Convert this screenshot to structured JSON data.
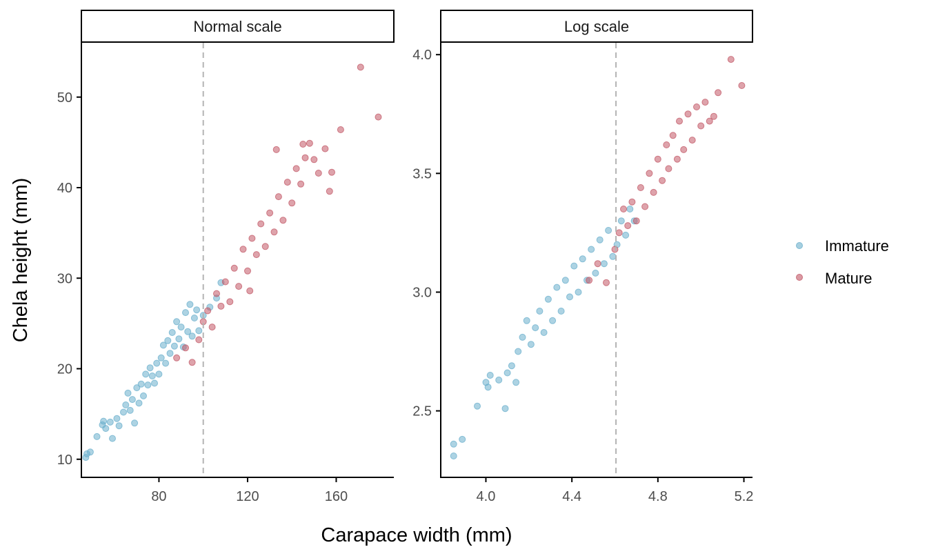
{
  "chart_data": [
    {
      "type": "scatter",
      "panel": "Normal scale",
      "xlabel": "Carapace width (mm)",
      "ylabel": "Chela height (mm)",
      "xlim": [
        45,
        186
      ],
      "ylim": [
        8,
        56
      ],
      "x_ticks": [
        80,
        120,
        160
      ],
      "y_ticks": [
        10,
        20,
        30,
        40,
        50
      ],
      "vline": 100,
      "grid": false,
      "legend": "right",
      "series": [
        {
          "name": "Immature",
          "color": "#6aafcc",
          "points": [
            [
              47,
              10.2
            ],
            [
              47.5,
              10.6
            ],
            [
              49,
              10.8
            ],
            [
              52,
              12.5
            ],
            [
              54.5,
              13.8
            ],
            [
              55,
              14.2
            ],
            [
              56,
              13.4
            ],
            [
              58,
              14.1
            ],
            [
              59,
              12.3
            ],
            [
              61,
              14.5
            ],
            [
              62,
              13.7
            ],
            [
              64,
              15.2
            ],
            [
              65,
              16.0
            ],
            [
              66,
              17.3
            ],
            [
              67,
              15.4
            ],
            [
              68,
              16.6
            ],
            [
              69,
              14.0
            ],
            [
              70,
              17.9
            ],
            [
              71,
              16.2
            ],
            [
              72,
              18.3
            ],
            [
              73,
              17.0
            ],
            [
              74,
              19.4
            ],
            [
              75,
              18.2
            ],
            [
              76,
              20.1
            ],
            [
              77,
              19.2
            ],
            [
              78,
              18.4
            ],
            [
              79,
              20.6
            ],
            [
              80,
              19.4
            ],
            [
              81,
              21.2
            ],
            [
              82,
              22.6
            ],
            [
              83,
              20.6
            ],
            [
              84,
              23.1
            ],
            [
              85,
              21.7
            ],
            [
              86,
              24.0
            ],
            [
              87,
              22.5
            ],
            [
              88,
              25.2
            ],
            [
              89,
              23.3
            ],
            [
              90,
              24.6
            ],
            [
              91,
              22.4
            ],
            [
              92,
              26.2
            ],
            [
              93,
              24.1
            ],
            [
              94,
              27.1
            ],
            [
              95,
              23.6
            ],
            [
              96,
              25.6
            ],
            [
              97,
              26.5
            ],
            [
              98,
              24.2
            ],
            [
              100,
              25.9
            ],
            [
              103,
              26.8
            ],
            [
              106,
              27.8
            ],
            [
              108,
              29.5
            ]
          ]
        },
        {
          "name": "Mature",
          "color": "#c25766",
          "points": [
            [
              88,
              21.2
            ],
            [
              92,
              22.3
            ],
            [
              95,
              20.7
            ],
            [
              98,
              23.2
            ],
            [
              100,
              25.2
            ],
            [
              102,
              26.4
            ],
            [
              104,
              24.6
            ],
            [
              106,
              28.3
            ],
            [
              108,
              26.9
            ],
            [
              110,
              29.6
            ],
            [
              112,
              27.4
            ],
            [
              114,
              31.1
            ],
            [
              116,
              29.1
            ],
            [
              118,
              33.2
            ],
            [
              120,
              30.8
            ],
            [
              121,
              28.6
            ],
            [
              122,
              34.4
            ],
            [
              124,
              32.6
            ],
            [
              126,
              36.0
            ],
            [
              128,
              33.5
            ],
            [
              130,
              37.2
            ],
            [
              132,
              35.1
            ],
            [
              133,
              44.2
            ],
            [
              134,
              39.0
            ],
            [
              136,
              36.4
            ],
            [
              138,
              40.6
            ],
            [
              140,
              38.3
            ],
            [
              142,
              42.1
            ],
            [
              144,
              40.4
            ],
            [
              145,
              44.8
            ],
            [
              146,
              43.3
            ],
            [
              148,
              44.9
            ],
            [
              150,
              43.1
            ],
            [
              152,
              41.6
            ],
            [
              155,
              44.3
            ],
            [
              157,
              39.6
            ],
            [
              158,
              41.7
            ],
            [
              162,
              46.4
            ],
            [
              171,
              53.3
            ],
            [
              179,
              47.8
            ]
          ]
        }
      ]
    },
    {
      "type": "scatter",
      "panel": "Log scale",
      "xlabel": "Carapace width (mm)",
      "ylabel": "Chela height (mm)",
      "xlim": [
        3.79,
        5.24
      ],
      "ylim": [
        2.22,
        4.05
      ],
      "x_ticks": [
        "4.0",
        "4.4",
        "4.8",
        "5.2"
      ],
      "y_ticks": [
        "2.5",
        "3.0",
        "3.5",
        "4.0"
      ],
      "vline": 4.605,
      "grid": false,
      "legend": "right",
      "series": [
        {
          "name": "Immature",
          "color": "#6aafcc",
          "points": [
            [
              3.85,
              2.31
            ],
            [
              3.85,
              2.36
            ],
            [
              3.89,
              2.38
            ],
            [
              3.96,
              2.52
            ],
            [
              4.0,
              2.62
            ],
            [
              4.01,
              2.6
            ],
            [
              4.02,
              2.65
            ],
            [
              4.06,
              2.63
            ],
            [
              4.09,
              2.51
            ],
            [
              4.1,
              2.66
            ],
            [
              4.12,
              2.69
            ],
            [
              4.14,
              2.62
            ],
            [
              4.15,
              2.75
            ],
            [
              4.17,
              2.81
            ],
            [
              4.19,
              2.88
            ],
            [
              4.21,
              2.78
            ],
            [
              4.23,
              2.85
            ],
            [
              4.25,
              2.92
            ],
            [
              4.27,
              2.83
            ],
            [
              4.29,
              2.97
            ],
            [
              4.31,
              2.88
            ],
            [
              4.33,
              3.02
            ],
            [
              4.35,
              2.92
            ],
            [
              4.37,
              3.05
            ],
            [
              4.39,
              2.98
            ],
            [
              4.41,
              3.11
            ],
            [
              4.43,
              3.0
            ],
            [
              4.45,
              3.14
            ],
            [
              4.47,
              3.05
            ],
            [
              4.49,
              3.18
            ],
            [
              4.51,
              3.08
            ],
            [
              4.53,
              3.22
            ],
            [
              4.55,
              3.12
            ],
            [
              4.57,
              3.26
            ],
            [
              4.59,
              3.15
            ],
            [
              4.61,
              3.2
            ],
            [
              4.63,
              3.3
            ],
            [
              4.65,
              3.24
            ],
            [
              4.67,
              3.35
            ],
            [
              4.69,
              3.3
            ]
          ]
        },
        {
          "name": "Mature",
          "color": "#c25766",
          "points": [
            [
              4.48,
              3.05
            ],
            [
              4.52,
              3.12
            ],
            [
              4.56,
              3.04
            ],
            [
              4.6,
              3.18
            ],
            [
              4.62,
              3.25
            ],
            [
              4.64,
              3.35
            ],
            [
              4.66,
              3.28
            ],
            [
              4.68,
              3.38
            ],
            [
              4.7,
              3.3
            ],
            [
              4.72,
              3.44
            ],
            [
              4.74,
              3.36
            ],
            [
              4.76,
              3.5
            ],
            [
              4.78,
              3.42
            ],
            [
              4.8,
              3.56
            ],
            [
              4.82,
              3.47
            ],
            [
              4.84,
              3.62
            ],
            [
              4.85,
              3.52
            ],
            [
              4.87,
              3.66
            ],
            [
              4.89,
              3.56
            ],
            [
              4.9,
              3.72
            ],
            [
              4.92,
              3.6
            ],
            [
              4.94,
              3.75
            ],
            [
              4.96,
              3.64
            ],
            [
              4.98,
              3.78
            ],
            [
              5.0,
              3.7
            ],
            [
              5.02,
              3.8
            ],
            [
              5.04,
              3.72
            ],
            [
              5.06,
              3.74
            ],
            [
              5.08,
              3.84
            ],
            [
              5.14,
              3.98
            ],
            [
              5.19,
              3.87
            ]
          ]
        }
      ]
    }
  ]
}
